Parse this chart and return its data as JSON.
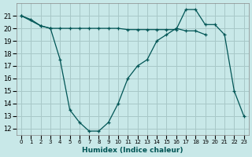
{
  "xlabel": "Humidex (Indice chaleur)",
  "bg_color": "#c8e8e8",
  "grid_color": "#a8c8c8",
  "line_color": "#005555",
  "series1_x": [
    0,
    1,
    2,
    3,
    4,
    5,
    6,
    7,
    8,
    9,
    10,
    11,
    12,
    13,
    14,
    15,
    16,
    17,
    18,
    19,
    20,
    21,
    22,
    23
  ],
  "series1_y": [
    21.0,
    20.7,
    20.2,
    20.0,
    20.0,
    20.0,
    20.0,
    20.0,
    20.0,
    20.0,
    20.0,
    19.9,
    19.9,
    19.9,
    19.9,
    19.9,
    19.9,
    21.5,
    21.5,
    20.3,
    20.3,
    19.5,
    15.0,
    13.0
  ],
  "series2_x": [
    0,
    2,
    3,
    4,
    5,
    6,
    7,
    8,
    9,
    10,
    11,
    12,
    13,
    14,
    15,
    16,
    17,
    18,
    19
  ],
  "series2_y": [
    21.0,
    20.2,
    20.0,
    17.5,
    13.5,
    12.5,
    11.8,
    11.8,
    12.5,
    14.0,
    16.0,
    17.0,
    17.5,
    19.0,
    19.5,
    20.0,
    19.8,
    19.8,
    19.5
  ],
  "ylim": [
    11.5,
    22.0
  ],
  "xlim": [
    -0.5,
    23.5
  ],
  "yticks": [
    12,
    13,
    14,
    15,
    16,
    17,
    18,
    19,
    20,
    21
  ],
  "xticks": [
    0,
    1,
    2,
    3,
    4,
    5,
    6,
    7,
    8,
    9,
    10,
    11,
    12,
    13,
    14,
    15,
    16,
    17,
    18,
    19,
    20,
    21,
    22,
    23
  ],
  "xtick_labels": [
    "0",
    "1",
    "2",
    "3",
    "4",
    "5",
    "6",
    "7",
    "8",
    "9",
    "10",
    "11",
    "12",
    "13",
    "14",
    "15",
    "16",
    "17",
    "18",
    "19",
    "20",
    "21",
    "22",
    "23"
  ]
}
